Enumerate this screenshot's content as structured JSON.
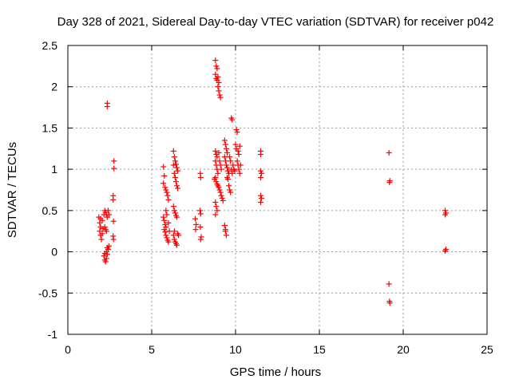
{
  "chart_data": {
    "type": "scatter",
    "title": "Day 328 of 2021, Sidereal Day-to-day VTEC variation (SDTVAR) for receiver p042",
    "xlabel": "GPS time / hours",
    "ylabel": "SDTVAR / TECUs",
    "xlim": [
      0,
      25
    ],
    "ylim": [
      -1,
      2.5
    ],
    "xticks": [
      0,
      5,
      10,
      15,
      20,
      25
    ],
    "yticks": [
      -1,
      -0.5,
      0,
      0.5,
      1,
      1.5,
      2,
      2.5
    ],
    "xtick_labels": [
      "0",
      "5",
      "10",
      "15",
      "20",
      "25"
    ],
    "ytick_labels": [
      "-1",
      "-0.5",
      "0",
      "0.5",
      "1",
      "1.5",
      "2",
      "2.5"
    ],
    "grid": true,
    "marker": "+",
    "color": "#ff0000",
    "series": [
      {
        "name": "SDTVAR",
        "points": [
          [
            1.85,
            0.42
          ],
          [
            1.9,
            0.35
          ],
          [
            1.95,
            0.3
          ],
          [
            1.9,
            0.25
          ],
          [
            1.95,
            0.2
          ],
          [
            2.0,
            0.15
          ],
          [
            1.95,
            0.4
          ],
          [
            2.05,
            0.38
          ],
          [
            2.1,
            0.28
          ],
          [
            2.05,
            0.22
          ],
          [
            2.15,
            0.45
          ],
          [
            2.2,
            0.5
          ],
          [
            2.25,
            0.48
          ],
          [
            2.3,
            0.45
          ],
          [
            2.35,
            0.42
          ],
          [
            2.2,
            0.3
          ],
          [
            2.25,
            0.27
          ],
          [
            2.3,
            0.25
          ],
          [
            2.4,
            0.5
          ],
          [
            2.45,
            0.45
          ],
          [
            2.15,
            -0.05
          ],
          [
            2.2,
            -0.1
          ],
          [
            2.25,
            -0.12
          ],
          [
            2.3,
            -0.08
          ],
          [
            2.35,
            -0.03
          ],
          [
            2.2,
            -0.02
          ],
          [
            2.3,
            0.0
          ],
          [
            2.35,
            0.05
          ],
          [
            2.45,
            0.07
          ],
          [
            2.4,
            0.03
          ],
          [
            2.35,
            1.8
          ],
          [
            2.35,
            1.76
          ],
          [
            2.75,
            1.1
          ],
          [
            2.75,
            1.01
          ],
          [
            2.7,
            0.68
          ],
          [
            2.7,
            0.63
          ],
          [
            2.72,
            0.37
          ],
          [
            2.7,
            0.19
          ],
          [
            2.72,
            0.15
          ],
          [
            5.7,
            1.03
          ],
          [
            5.75,
            0.92
          ],
          [
            5.7,
            0.83
          ],
          [
            5.8,
            0.78
          ],
          [
            5.85,
            0.75
          ],
          [
            5.9,
            0.72
          ],
          [
            5.95,
            0.68
          ],
          [
            6.0,
            0.63
          ],
          [
            5.7,
            0.42
          ],
          [
            5.75,
            0.38
          ],
          [
            5.8,
            0.33
          ],
          [
            5.85,
            0.3
          ],
          [
            5.75,
            0.27
          ],
          [
            5.8,
            0.24
          ],
          [
            5.85,
            0.2
          ],
          [
            5.9,
            0.17
          ],
          [
            5.95,
            0.14
          ],
          [
            6.0,
            0.12
          ],
          [
            5.85,
            0.5
          ],
          [
            5.9,
            0.45
          ],
          [
            6.0,
            0.35
          ],
          [
            6.05,
            0.25
          ],
          [
            6.3,
            1.22
          ],
          [
            6.35,
            1.15
          ],
          [
            6.4,
            1.1
          ],
          [
            6.45,
            1.06
          ],
          [
            6.5,
            1.02
          ],
          [
            6.55,
            0.98
          ],
          [
            6.35,
            0.95
          ],
          [
            6.4,
            0.9
          ],
          [
            6.45,
            0.85
          ],
          [
            6.5,
            0.8
          ],
          [
            6.55,
            0.77
          ],
          [
            6.3,
            1.05
          ],
          [
            6.3,
            0.55
          ],
          [
            6.35,
            0.5
          ],
          [
            6.4,
            0.47
          ],
          [
            6.45,
            0.44
          ],
          [
            6.5,
            0.42
          ],
          [
            6.3,
            0.2
          ],
          [
            6.35,
            0.15
          ],
          [
            6.4,
            0.12
          ],
          [
            6.45,
            0.1
          ],
          [
            6.5,
            0.08
          ],
          [
            6.35,
            0.25
          ],
          [
            6.55,
            0.22
          ],
          [
            6.6,
            0.2
          ],
          [
            7.6,
            0.4
          ],
          [
            7.65,
            0.33
          ],
          [
            7.62,
            0.27
          ],
          [
            7.9,
            0.95
          ],
          [
            7.92,
            0.9
          ],
          [
            7.88,
            0.5
          ],
          [
            7.92,
            0.46
          ],
          [
            7.9,
            0.3
          ],
          [
            7.95,
            0.18
          ],
          [
            7.92,
            0.15
          ],
          [
            8.8,
            2.32
          ],
          [
            8.85,
            2.25
          ],
          [
            8.9,
            2.22
          ],
          [
            8.8,
            2.15
          ],
          [
            8.85,
            2.1
          ],
          [
            8.9,
            2.08
          ],
          [
            8.95,
            2.12
          ],
          [
            9.0,
            2.05
          ],
          [
            8.95,
            2.0
          ],
          [
            9.0,
            1.95
          ],
          [
            9.05,
            1.9
          ],
          [
            9.1,
            1.87
          ],
          [
            8.8,
            1.22
          ],
          [
            8.85,
            1.18
          ],
          [
            8.9,
            1.15
          ],
          [
            8.8,
            1.1
          ],
          [
            8.85,
            1.05
          ],
          [
            8.9,
            1.0
          ],
          [
            8.95,
            0.95
          ],
          [
            9.0,
            1.2
          ],
          [
            9.05,
            1.1
          ],
          [
            9.1,
            1.05
          ],
          [
            9.15,
            1.0
          ],
          [
            8.8,
            0.9
          ],
          [
            8.85,
            0.85
          ],
          [
            8.9,
            0.82
          ],
          [
            8.95,
            0.8
          ],
          [
            9.0,
            0.78
          ],
          [
            9.05,
            0.75
          ],
          [
            9.1,
            0.72
          ],
          [
            9.15,
            0.68
          ],
          [
            9.2,
            0.65
          ],
          [
            9.25,
            0.62
          ],
          [
            8.8,
            0.6
          ],
          [
            8.85,
            0.55
          ],
          [
            8.9,
            0.5
          ],
          [
            8.8,
            0.45
          ],
          [
            8.75,
            0.88
          ],
          [
            9.35,
            1.35
          ],
          [
            9.4,
            1.3
          ],
          [
            9.45,
            1.25
          ],
          [
            9.5,
            1.2
          ],
          [
            9.35,
            1.15
          ],
          [
            9.4,
            1.1
          ],
          [
            9.45,
            1.05
          ],
          [
            9.5,
            1.02
          ],
          [
            9.55,
            0.98
          ],
          [
            9.6,
            0.95
          ],
          [
            9.65,
            1.15
          ],
          [
            9.7,
            1.1
          ],
          [
            9.75,
            1.0
          ],
          [
            9.8,
            0.95
          ],
          [
            9.85,
            1.05
          ],
          [
            9.9,
            1.0
          ],
          [
            9.95,
            0.98
          ],
          [
            9.6,
            0.8
          ],
          [
            9.65,
            0.75
          ],
          [
            9.7,
            0.72
          ],
          [
            9.5,
            0.9
          ],
          [
            9.55,
            0.88
          ],
          [
            9.35,
            0.32
          ],
          [
            9.4,
            0.25
          ],
          [
            9.45,
            0.2
          ],
          [
            9.4,
            0.27
          ],
          [
            9.75,
            1.62
          ],
          [
            9.8,
            1.6
          ],
          [
            10.05,
            1.48
          ],
          [
            10.1,
            1.45
          ],
          [
            10.0,
            1.3
          ],
          [
            10.05,
            1.25
          ],
          [
            10.15,
            1.22
          ],
          [
            10.2,
            1.18
          ],
          [
            10.25,
            1.28
          ],
          [
            10.1,
            1.1
          ],
          [
            10.15,
            1.05
          ],
          [
            10.2,
            1.0
          ],
          [
            10.3,
            1.05
          ],
          [
            10.25,
            0.95
          ],
          [
            11.5,
            1.22
          ],
          [
            11.5,
            1.18
          ],
          [
            11.5,
            0.98
          ],
          [
            11.55,
            0.95
          ],
          [
            11.5,
            0.9
          ],
          [
            11.5,
            0.68
          ],
          [
            11.55,
            0.65
          ],
          [
            11.5,
            0.6
          ],
          [
            19.15,
            1.2
          ],
          [
            19.2,
            0.86
          ],
          [
            19.18,
            0.84
          ],
          [
            19.15,
            -0.39
          ],
          [
            19.18,
            -0.6
          ],
          [
            19.2,
            -0.62
          ],
          [
            22.5,
            0.5
          ],
          [
            22.55,
            0.47
          ],
          [
            22.5,
            0.45
          ],
          [
            22.55,
            0.03
          ],
          [
            22.5,
            0.01
          ]
        ]
      }
    ]
  }
}
